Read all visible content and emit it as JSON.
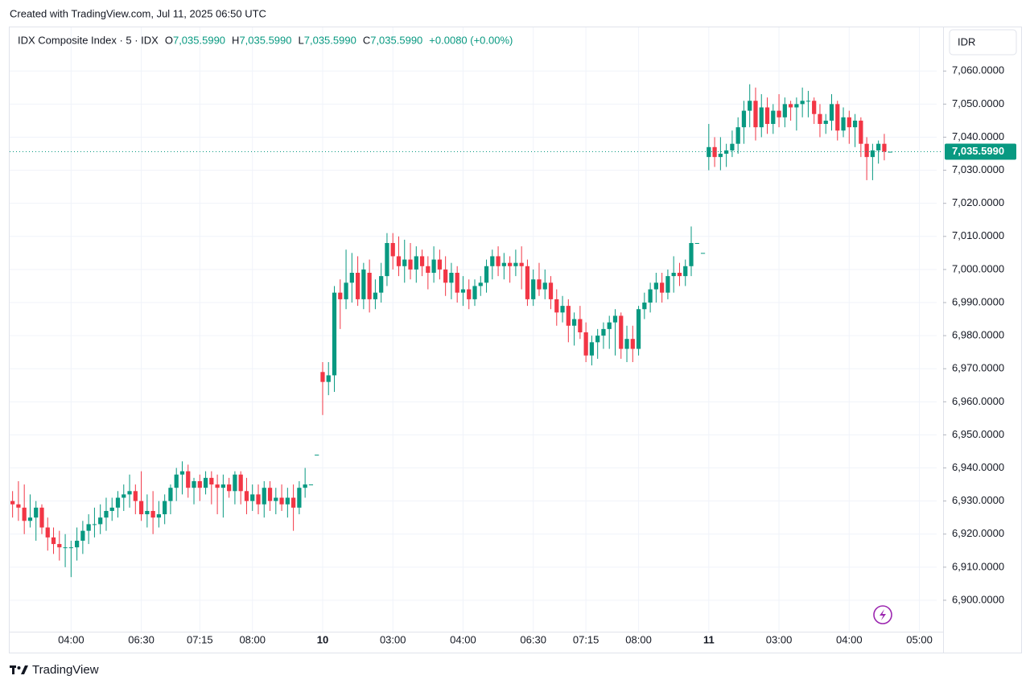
{
  "chart_data": {
    "type": "candlestick",
    "credit": "Created with TradingView.com, Jul 11, 2025 06:50 UTC",
    "title": "IDX Composite Index · 5 · IDX",
    "ohlc": [
      {
        "label": "O",
        "text": "7,035.5990"
      },
      {
        "label": "H",
        "text": "7,035.5990"
      },
      {
        "label": "L",
        "text": "7,035.5990"
      },
      {
        "label": "C",
        "text": "7,035.5990"
      }
    ],
    "change": "+0.0080 (+0.00%)",
    "currency": "IDR",
    "brand": "TradingView",
    "up_color": "#089981",
    "down_color": "#f23645",
    "grid": true,
    "last_price": {
      "value": 7035.599,
      "label": "7,035.5990"
    },
    "ylim": [
      6890.5,
      7073.2
    ],
    "yticks": [
      {
        "value": 6900,
        "label": "6,900.0000"
      },
      {
        "value": 6910,
        "label": "6,910.0000"
      },
      {
        "value": 6920,
        "label": "6,920.0000"
      },
      {
        "value": 6930,
        "label": "6,930.0000"
      },
      {
        "value": 6940,
        "label": "6,940.0000"
      },
      {
        "value": 6950,
        "label": "6,950.0000"
      },
      {
        "value": 6960,
        "label": "6,960.0000"
      },
      {
        "value": 6970,
        "label": "6,970.0000"
      },
      {
        "value": 6980,
        "label": "6,980.0000"
      },
      {
        "value": 6990,
        "label": "6,990.0000"
      },
      {
        "value": 7000,
        "label": "7,000.0000"
      },
      {
        "value": 7010,
        "label": "7,010.0000"
      },
      {
        "value": 7020,
        "label": "7,020.0000"
      },
      {
        "value": 7030,
        "label": "7,030.0000"
      },
      {
        "value": 7040,
        "label": "7,040.0000"
      },
      {
        "value": 7050,
        "label": "7,050.0000"
      },
      {
        "value": 7060,
        "label": "7,060.0000"
      }
    ],
    "categories": [
      null,
      null,
      null,
      null,
      null,
      null,
      null,
      null,
      null,
      null,
      "04:00",
      null,
      null,
      null,
      null,
      null,
      null,
      null,
      null,
      null,
      null,
      null,
      "06:30",
      null,
      null,
      null,
      null,
      null,
      null,
      null,
      null,
      null,
      "07:15",
      null,
      null,
      null,
      null,
      null,
      null,
      null,
      null,
      "08:00",
      null,
      null,
      null,
      null,
      null,
      null,
      null,
      null,
      null,
      null,
      null,
      "10",
      null,
      null,
      null,
      null,
      null,
      null,
      null,
      null,
      null,
      null,
      null,
      "03:00",
      null,
      null,
      null,
      null,
      null,
      null,
      null,
      null,
      null,
      null,
      null,
      "04:00",
      null,
      null,
      null,
      null,
      null,
      null,
      null,
      null,
      null,
      null,
      null,
      "06:30",
      null,
      null,
      null,
      null,
      null,
      null,
      null,
      null,
      "07:15",
      null,
      null,
      null,
      null,
      null,
      null,
      null,
      null,
      "08:00",
      null,
      null,
      null,
      null,
      null,
      null,
      null,
      null,
      null,
      null,
      null,
      "11",
      null,
      null,
      null,
      null,
      null,
      null,
      null,
      null,
      null,
      null,
      null,
      "03:00",
      null,
      null,
      null,
      null,
      null,
      null,
      null,
      null,
      null,
      null,
      null,
      "04:00",
      null,
      null,
      null,
      null,
      null,
      null,
      null,
      null,
      null,
      null,
      null,
      "05:00",
      null,
      null,
      null
    ],
    "open": [
      6930,
      6929,
      6928,
      6924,
      6925,
      6928,
      6922,
      6919,
      6917,
      6916,
      6916,
      6916,
      6918,
      6921,
      6923,
      6923,
      6925,
      6927,
      6928,
      6931,
      6932,
      6933,
      6930,
      6926,
      6927,
      6925,
      6926,
      6930,
      6934,
      6938,
      6939,
      6934,
      6936,
      6934,
      6937,
      6935,
      6934,
      6935,
      6933,
      6938,
      6933,
      6930,
      6932,
      6929,
      6934,
      6930,
      6931,
      6929,
      6931,
      6928,
      6934,
      6935,
      6944,
      6969,
      6966,
      6968,
      6993,
      6991,
      6996,
      6999,
      6991,
      6999,
      6991,
      6993,
      6998,
      7008,
      7004,
      7001,
      7003,
      7000,
      7004,
      7001,
      6999,
      7003,
      7000,
      6996,
      6999,
      6993,
      6994,
      6991,
      6995,
      6996,
      7001,
      7004,
      7001,
      7002,
      7001,
      7002,
      7001,
      6991,
      6997,
      6994,
      6996,
      6991,
      6987,
      6989,
      6983,
      6985,
      6981,
      6974,
      6978,
      6980,
      6982,
      6984,
      6986,
      6976,
      6979,
      6976,
      6988,
      6990,
      6994,
      6996,
      6993,
      6998,
      6999,
      6998,
      7001,
      7008,
      7005,
      7034,
      7037,
      7034,
      7035,
      7036,
      7038,
      7043,
      7048,
      7051,
      7043,
      7049,
      7044,
      7048,
      7046,
      7050,
      7049,
      7050,
      7051,
      7051,
      7047,
      7044,
      7045,
      7050,
      7042,
      7046,
      7043,
      7045,
      7038,
      7034,
      7036,
      7038,
      7035.599,
      null,
      null,
      null,
      null,
      null,
      null,
      null,
      null
    ],
    "high": [
      6933,
      6936,
      6935,
      6932,
      6930,
      6929,
      6925,
      6922,
      6921,
      6920,
      6918,
      6922,
      6924,
      6926,
      6928,
      6929,
      6931,
      6931,
      6933,
      6935,
      6938,
      6935,
      6939,
      6932,
      6933,
      6930,
      6932,
      6935,
      6940,
      6942,
      6941,
      6937,
      6938,
      6939,
      6939,
      6938,
      6938,
      6937,
      6939,
      6939,
      6937,
      6935,
      6935,
      6936,
      6936,
      6934,
      6935,
      6934,
      6935,
      6936,
      6940,
      6935,
      6944,
      6972,
      6972,
      6995,
      6997,
      7006,
      7005,
      7004,
      7002,
      7003,
      6997,
      7002,
      7011,
      7011,
      7010,
      7009,
      7008,
      7007,
      7006,
      7004,
      7007,
      7006,
      7004,
      7002,
      7001,
      6998,
      6997,
      6997,
      6998,
      7003,
      7006,
      7007,
      7005,
      7004,
      7006,
      7007,
      7003,
      7000,
      7002,
      7000,
      6998,
      6994,
      6992,
      6991,
      6987,
      6989,
      6984,
      6980,
      6982,
      6984,
      6986,
      6988,
      6987,
      6983,
      6983,
      6989,
      6993,
      6996,
      6999,
      6999,
      7000,
      7004,
      7002,
      7003,
      7013,
      7008,
      7005,
      7044,
      7040,
      7040,
      7038,
      7042,
      7046,
      7051,
      7056,
      7055,
      7053,
      7052,
      7050,
      7053,
      7052,
      7051,
      7052,
      7055,
      7054,
      7052,
      7050,
      7047,
      7053,
      7051,
      7049,
      7048,
      7047,
      7046,
      7040,
      7038,
      7039,
      7041,
      7035.599,
      null,
      null,
      null,
      null,
      null,
      null,
      null,
      null
    ],
    "low": [
      6925,
      6924,
      6920,
      6922,
      6918,
      6920,
      6915,
      6914,
      6912,
      6910,
      6907,
      6912,
      6914,
      6917,
      6919,
      6920,
      6921,
      6924,
      6925,
      6927,
      6928,
      6926,
      6924,
      6922,
      6920,
      6922,
      6923,
      6926,
      6930,
      6932,
      6931,
      6929,
      6930,
      6932,
      6929,
      6926,
      6925,
      6931,
      6929,
      6929,
      6926,
      6927,
      6926,
      6925,
      6927,
      6926,
      6927,
      6925,
      6921,
      6926,
      6931,
      6935,
      6944,
      6956,
      6962,
      6963,
      6982,
      6988,
      6990,
      6989,
      6988,
      6987,
      6988,
      6990,
      6995,
      7000,
      6998,
      6996,
      6997,
      6996,
      6998,
      6994,
      6996,
      6997,
      6992,
      6991,
      6990,
      6989,
      6988,
      6989,
      6992,
      6993,
      6997,
      6998,
      6997,
      6996,
      6998,
      6994,
      6989,
      6989,
      6992,
      6991,
      6988,
      6983,
      6984,
      6978,
      6977,
      6979,
      6972,
      6971,
      6973,
      6976,
      6976,
      6974,
      6973,
      6972,
      6972,
      6974,
      6985,
      6987,
      6990,
      6990,
      6991,
      6993,
      6995,
      6995,
      6998,
      7008,
      7005,
      7030,
      7031,
      7030,
      7031,
      7034,
      7035,
      7038,
      7043,
      7039,
      7040,
      7041,
      7041,
      7043,
      7043,
      7045,
      7042,
      7046,
      7046,
      7044,
      7040,
      7041,
      7042,
      7039,
      7040,
      7038,
      7037,
      7034,
      7027,
      7027,
      7032,
      7033,
      7035.599,
      null,
      null,
      null,
      null,
      null,
      null,
      null,
      null
    ],
    "close": [
      6929,
      6928,
      6924,
      6925,
      6928,
      6922,
      6919,
      6917,
      6916,
      6916,
      6916,
      6918,
      6921,
      6923,
      6923,
      6925,
      6927,
      6928,
      6931,
      6932,
      6933,
      6930,
      6926,
      6927,
      6925,
      6926,
      6930,
      6934,
      6938,
      6939,
      6934,
      6936,
      6934,
      6937,
      6935,
      6934,
      6935,
      6933,
      6938,
      6933,
      6930,
      6932,
      6929,
      6934,
      6930,
      6931,
      6929,
      6931,
      6928,
      6934,
      6935,
      6935,
      6944,
      6966,
      6968,
      6993,
      6991,
      6996,
      6999,
      6991,
      7000,
      6991,
      6993,
      6998,
      7008,
      7004,
      7001,
      7003,
      7000,
      7004,
      7001,
      6999,
      7003,
      7000,
      6996,
      6999,
      6993,
      6994,
      6991,
      6995,
      6996,
      7001,
      7004,
      7001,
      7002,
      7001,
      7002,
      7001,
      6991,
      6997,
      6994,
      6996,
      6991,
      6987,
      6989,
      6983,
      6985,
      6981,
      6974,
      6978,
      6980,
      6982,
      6984,
      6986,
      6976,
      6979,
      6976,
      6988,
      6990,
      6994,
      6996,
      6993,
      6998,
      6999,
      6998,
      7001,
      7008,
      7008,
      7005,
      7037,
      7034,
      7035,
      7036,
      7038,
      7043,
      7048,
      7051,
      7043,
      7049,
      7044,
      7048,
      7046,
      7050,
      7049,
      7050,
      7051,
      7051,
      7047,
      7044,
      7045,
      7050,
      7042,
      7046,
      7043,
      7045,
      7038,
      7034,
      7036,
      7038,
      7035.599,
      7035.599,
      null,
      null,
      null,
      null,
      null,
      null,
      null,
      null
    ]
  }
}
